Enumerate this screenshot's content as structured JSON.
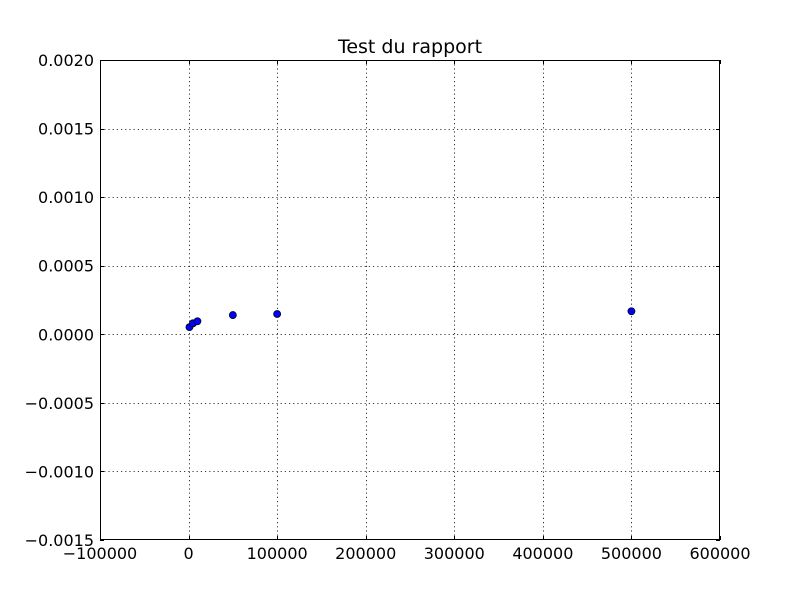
{
  "chart_data": {
    "type": "scatter",
    "title": "Test du rapport",
    "xlabel": "",
    "ylabel": "",
    "xlim": [
      -100000,
      600000
    ],
    "ylim": [
      -0.0015,
      0.002
    ],
    "x_ticks": [
      -100000,
      0,
      100000,
      200000,
      300000,
      400000,
      500000,
      600000
    ],
    "x_tick_labels": [
      "−100000",
      "0",
      "100000",
      "200000",
      "300000",
      "400000",
      "500000",
      "600000"
    ],
    "y_ticks": [
      -0.0015,
      -0.001,
      -0.0005,
      0.0,
      0.0005,
      0.001,
      0.0015,
      0.002
    ],
    "y_tick_labels": [
      "−0.0015",
      "−0.0010",
      "−0.0005",
      "0.0000",
      "0.0005",
      "0.0010",
      "0.0015",
      "0.0020"
    ],
    "grid": true,
    "series": [
      {
        "color": "#0000ff",
        "points": [
          {
            "x": 1000,
            "y": 5.2e-05
          },
          {
            "x": 5000,
            "y": 8e-05
          },
          {
            "x": 10000,
            "y": 9.5e-05
          },
          {
            "x": 50000,
            "y": 0.00014
          },
          {
            "x": 100000,
            "y": 0.000148
          },
          {
            "x": 500000,
            "y": 0.000168
          }
        ]
      }
    ]
  }
}
